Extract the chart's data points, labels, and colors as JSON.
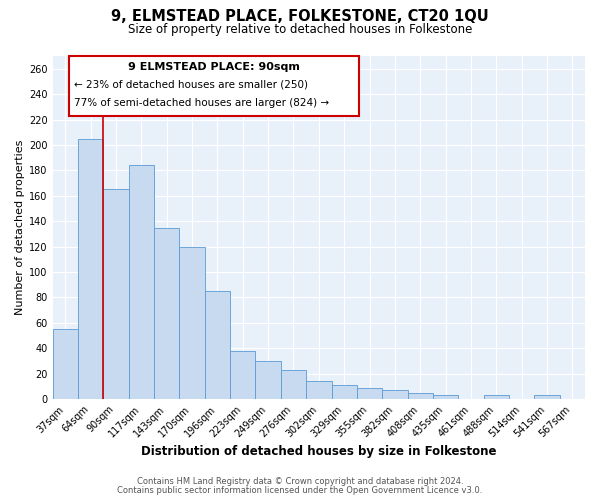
{
  "title": "9, ELMSTEAD PLACE, FOLKESTONE, CT20 1QU",
  "subtitle": "Size of property relative to detached houses in Folkestone",
  "xlabel": "Distribution of detached houses by size in Folkestone",
  "ylabel": "Number of detached properties",
  "bin_labels": [
    "37sqm",
    "64sqm",
    "90sqm",
    "117sqm",
    "143sqm",
    "170sqm",
    "196sqm",
    "223sqm",
    "249sqm",
    "276sqm",
    "302sqm",
    "329sqm",
    "355sqm",
    "382sqm",
    "408sqm",
    "435sqm",
    "461sqm",
    "488sqm",
    "514sqm",
    "541sqm",
    "567sqm"
  ],
  "bar_heights": [
    55,
    205,
    165,
    184,
    135,
    120,
    85,
    38,
    30,
    23,
    14,
    11,
    9,
    7,
    5,
    3,
    0,
    3,
    0,
    3,
    0
  ],
  "bar_color": "#c8daf0",
  "bar_edge_color": "#5b9bd5",
  "red_line_index": 2,
  "ylim": [
    0,
    270
  ],
  "yticks": [
    0,
    20,
    40,
    60,
    80,
    100,
    120,
    140,
    160,
    180,
    200,
    220,
    240,
    260
  ],
  "annotation_title": "9 ELMSTEAD PLACE: 90sqm",
  "annotation_line1": "← 23% of detached houses are smaller (250)",
  "annotation_line2": "77% of semi-detached houses are larger (824) →",
  "annotation_box_color": "#ffffff",
  "annotation_box_edge_color": "#cc0000",
  "footer1": "Contains HM Land Registry data © Crown copyright and database right 2024.",
  "footer2": "Contains public sector information licensed under the Open Government Licence v3.0.",
  "plot_bg_color": "#e8f0fa",
  "fig_bg_color": "#ffffff"
}
